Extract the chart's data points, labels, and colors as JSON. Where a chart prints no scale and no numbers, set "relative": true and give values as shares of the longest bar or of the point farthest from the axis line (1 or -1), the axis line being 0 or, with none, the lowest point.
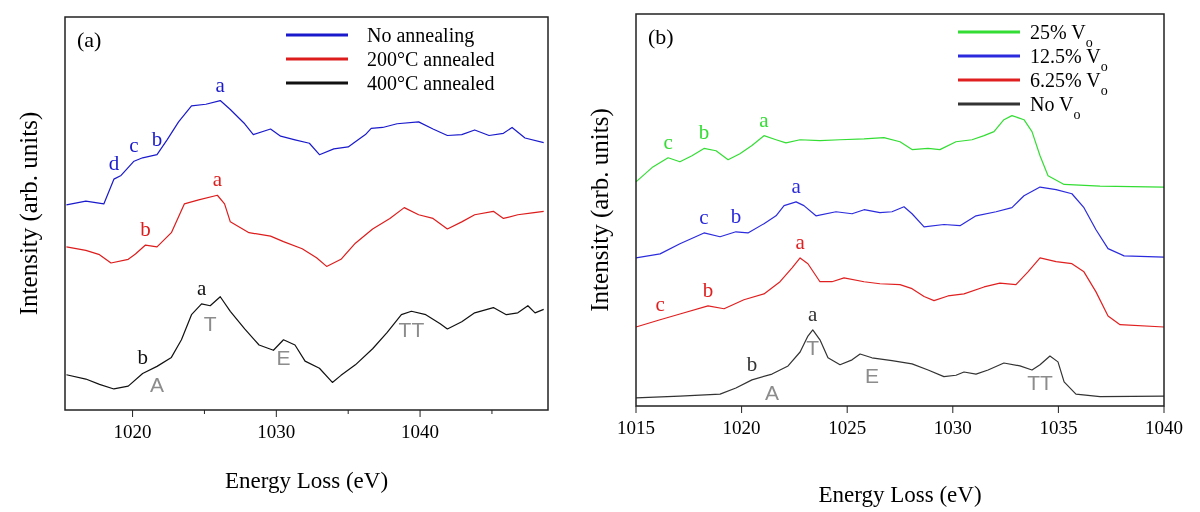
{
  "chart_data": [
    {
      "type": "line",
      "title": "(a)",
      "xlabel": "Energy Loss (eV)",
      "ylabel": "Intensity (arb. units)",
      "relative": true,
      "tick_labels": "x",
      "legend": "top right",
      "grid": false,
      "xlim": [
        1015.3,
        1048.9
      ],
      "xticks": [
        1020,
        {
          "value": 1025,
          "label": null
        },
        1030,
        {
          "value": 1035,
          "label": null
        },
        1040,
        {
          "value": 1045,
          "label": null
        }
      ],
      "series": [
        {
          "name": "No annealing",
          "color": "#1a1acc",
          "x": [
            1015.4,
            1016.75,
            1018.0,
            1018.7,
            1019.2,
            1020.1,
            1020.7,
            1021.7,
            1022.4,
            1023.2,
            1024.1,
            1025.1,
            1026.1,
            1026.8,
            1027.8,
            1028.4,
            1029.6,
            1030.3,
            1031.3,
            1032.3,
            1033.0,
            1034.0,
            1035.0,
            1035.5,
            1036.2,
            1036.6,
            1037.4,
            1038.4,
            1039.9,
            1040.9,
            1041.9,
            1042.9,
            1043.8,
            1044.8,
            1045.8,
            1046.4,
            1047.3,
            1048.6
          ],
          "values": [
            0.663,
            0.675,
            0.666,
            0.746,
            0.758,
            0.804,
            0.815,
            0.825,
            0.873,
            0.931,
            0.983,
            0.988,
            1.0,
            0.971,
            0.925,
            0.89,
            0.908,
            0.885,
            0.873,
            0.862,
            0.825,
            0.844,
            0.85,
            0.867,
            0.89,
            0.91,
            0.913,
            0.925,
            0.931,
            0.908,
            0.887,
            0.89,
            0.905,
            0.887,
            0.894,
            0.913,
            0.879,
            0.864
          ]
        },
        {
          "name": "200°C annealed",
          "color": "#dd1c1c",
          "x": [
            1015.4,
            1016.75,
            1017.7,
            1018.5,
            1019.7,
            1020.2,
            1020.9,
            1021.7,
            1022.7,
            1023.6,
            1024.6,
            1025.9,
            1026.4,
            1026.8,
            1028.1,
            1029.6,
            1030.5,
            1031.8,
            1032.8,
            1033.5,
            1034.5,
            1035.5,
            1036.7,
            1037.9,
            1038.9,
            1039.9,
            1040.9,
            1041.9,
            1042.9,
            1043.8,
            1045.1,
            1045.8,
            1046.8,
            1047.8,
            1048.6
          ],
          "values": [
            0.527,
            0.516,
            0.502,
            0.475,
            0.487,
            0.504,
            0.533,
            0.527,
            0.573,
            0.666,
            0.679,
            0.694,
            0.666,
            0.608,
            0.573,
            0.562,
            0.544,
            0.521,
            0.492,
            0.464,
            0.487,
            0.539,
            0.585,
            0.619,
            0.654,
            0.631,
            0.619,
            0.585,
            0.608,
            0.631,
            0.642,
            0.619,
            0.631,
            0.637,
            0.642
          ]
        },
        {
          "name": "400°C annealed",
          "color": "#111111",
          "x": [
            1015.4,
            1016.75,
            1017.7,
            1018.7,
            1019.7,
            1020.7,
            1021.7,
            1022.7,
            1023.4,
            1024.1,
            1024.8,
            1025.4,
            1026.1,
            1026.8,
            1027.8,
            1028.8,
            1029.8,
            1030.5,
            1031.3,
            1032.0,
            1033.0,
            1033.9,
            1034.5,
            1035.5,
            1036.7,
            1037.7,
            1038.7,
            1039.4,
            1040.4,
            1041.4,
            1041.9,
            1042.9,
            1043.8,
            1045.1,
            1046.0,
            1046.8,
            1047.5,
            1048.0,
            1048.6
          ],
          "values": [
            0.114,
            0.1,
            0.083,
            0.068,
            0.077,
            0.118,
            0.141,
            0.17,
            0.227,
            0.308,
            0.343,
            0.337,
            0.366,
            0.319,
            0.262,
            0.21,
            0.193,
            0.227,
            0.21,
            0.158,
            0.135,
            0.089,
            0.112,
            0.146,
            0.198,
            0.25,
            0.308,
            0.319,
            0.308,
            0.279,
            0.262,
            0.285,
            0.314,
            0.331,
            0.308,
            0.314,
            0.337,
            0.314,
            0.325
          ]
        }
      ],
      "annotations": [
        {
          "text": "d",
          "x": 1018.7,
          "y": 0.746
        },
        {
          "text": "c",
          "x": 1020.1,
          "y": 0.804
        },
        {
          "text": "b",
          "x": 1021.7,
          "y": 0.825
        },
        {
          "text": "a",
          "x": 1026.1,
          "y": 1.0
        },
        {
          "text": "b",
          "x": 1020.9,
          "y": 0.533
        },
        {
          "text": "a",
          "x": 1025.9,
          "y": 0.694
        },
        {
          "text": "a",
          "x": 1024.8,
          "y": 0.343
        },
        {
          "text": "b",
          "x": 1020.7,
          "y": 0.118
        },
        {
          "text": "T",
          "x": 1025.4,
          "y": 0.337
        },
        {
          "text": "A",
          "x": 1021.7,
          "y": 0.141
        },
        {
          "text": "E",
          "x": 1030.5,
          "y": 0.227
        },
        {
          "text": "TT",
          "x": 1039.4,
          "y": 0.319
        }
      ]
    },
    {
      "type": "line",
      "title": "(b)",
      "xlabel": "Energy Loss (eV)",
      "ylabel": "Intensity (arb. units)",
      "relative": true,
      "tick_labels": "x",
      "legend": "top right",
      "grid": false,
      "xlim": [
        1015,
        1040
      ],
      "xticks": [
        1015,
        1020,
        1025,
        1030,
        1035,
        1040
      ],
      "series": [
        {
          "name": "25% V$_{o}$",
          "color": "#33dd33",
          "x": [
            1015.0,
            1015.76,
            1016.52,
            1017.08,
            1017.65,
            1018.22,
            1018.79,
            1019.36,
            1019.92,
            1020.49,
            1021.06,
            1021.63,
            1022.1,
            1022.77,
            1023.71,
            1024.66,
            1025.8,
            1026.74,
            1027.5,
            1028.07,
            1028.83,
            1029.39,
            1030.15,
            1030.91,
            1031.48,
            1031.95,
            1032.42,
            1032.8,
            1033.37,
            1033.75,
            1034.13,
            1034.51,
            1035.27,
            1036.97,
            1040
          ],
          "values": [
            0.772,
            0.821,
            0.855,
            0.841,
            0.862,
            0.887,
            0.879,
            0.848,
            0.869,
            0.897,
            0.931,
            0.917,
            0.906,
            0.917,
            0.914,
            0.917,
            0.92,
            0.924,
            0.91,
            0.883,
            0.887,
            0.883,
            0.91,
            0.917,
            0.931,
            0.945,
            0.986,
            1.0,
            0.986,
            0.945,
            0.862,
            0.793,
            0.763,
            0.757,
            0.754
          ]
        },
        {
          "name": "12.5% V$_{o}$",
          "color": "#2b2bdd",
          "x": [
            1015.0,
            1016.14,
            1017.08,
            1018.22,
            1018.98,
            1019.73,
            1020.3,
            1021.06,
            1021.63,
            1022.01,
            1022.58,
            1022.95,
            1023.52,
            1024.47,
            1025.23,
            1025.8,
            1026.55,
            1027.12,
            1027.69,
            1028.07,
            1028.64,
            1029.58,
            1030.34,
            1031.1,
            1032.05,
            1032.8,
            1033.37,
            1034.13,
            1034.89,
            1035.64,
            1036.21,
            1036.78,
            1037.35,
            1038.11,
            1040
          ],
          "values": [
            0.51,
            0.524,
            0.559,
            0.596,
            0.583,
            0.6,
            0.596,
            0.628,
            0.655,
            0.69,
            0.703,
            0.69,
            0.655,
            0.669,
            0.662,
            0.676,
            0.666,
            0.669,
            0.686,
            0.662,
            0.617,
            0.625,
            0.621,
            0.655,
            0.669,
            0.683,
            0.724,
            0.754,
            0.745,
            0.731,
            0.683,
            0.607,
            0.542,
            0.517,
            0.513
          ]
        },
        {
          "name": "6.25% V$_{o}$",
          "color": "#e02020",
          "x": [
            1015.0,
            1016.14,
            1017.08,
            1018.41,
            1019.17,
            1020.11,
            1021.06,
            1021.82,
            1022.39,
            1022.77,
            1023.14,
            1023.71,
            1024.28,
            1024.85,
            1025.8,
            1026.55,
            1027.5,
            1028.07,
            1028.64,
            1029.11,
            1029.77,
            1030.53,
            1031.48,
            1032.23,
            1032.99,
            1033.56,
            1034.13,
            1034.89,
            1035.64,
            1036.21,
            1036.78,
            1037.35,
            1037.92,
            1040
          ],
          "values": [
            0.272,
            0.297,
            0.317,
            0.345,
            0.335,
            0.366,
            0.386,
            0.428,
            0.476,
            0.51,
            0.49,
            0.428,
            0.428,
            0.441,
            0.428,
            0.421,
            0.418,
            0.404,
            0.377,
            0.363,
            0.379,
            0.386,
            0.41,
            0.423,
            0.418,
            0.462,
            0.51,
            0.497,
            0.49,
            0.462,
            0.393,
            0.31,
            0.28,
            0.272
          ]
        },
        {
          "name": "No V$_{o}$",
          "color": "#333333",
          "x": [
            1015.0,
            1017.08,
            1018.98,
            1019.73,
            1020.49,
            1021.44,
            1022.2,
            1022.77,
            1023.14,
            1023.37,
            1023.71,
            1024.09,
            1024.66,
            1025.23,
            1025.61,
            1026.17,
            1027.12,
            1028.07,
            1028.83,
            1029.58,
            1030.15,
            1030.53,
            1031.1,
            1031.67,
            1032.42,
            1033.18,
            1033.75,
            1034.13,
            1034.6,
            1034.98,
            1035.27,
            1035.83,
            1036.97,
            1040
          ],
          "values": [
            0.028,
            0.034,
            0.041,
            0.062,
            0.09,
            0.11,
            0.138,
            0.186,
            0.241,
            0.262,
            0.228,
            0.166,
            0.142,
            0.159,
            0.179,
            0.166,
            0.156,
            0.145,
            0.124,
            0.101,
            0.106,
            0.117,
            0.11,
            0.124,
            0.148,
            0.138,
            0.124,
            0.142,
            0.172,
            0.152,
            0.083,
            0.041,
            0.032,
            0.034
          ]
        }
      ],
      "annotations": [
        {
          "text": "c",
          "x": 1016.52,
          "y": 0.855
        },
        {
          "text": "b",
          "x": 1018.22,
          "y": 0.887
        },
        {
          "text": "a",
          "x": 1021.06,
          "y": 0.931
        },
        {
          "text": "a",
          "x": 1022.58,
          "y": 0.703
        },
        {
          "text": "c",
          "x": 1018.22,
          "y": 0.596
        },
        {
          "text": "b",
          "x": 1019.73,
          "y": 0.6
        },
        {
          "text": "a",
          "x": 1022.77,
          "y": 0.51
        },
        {
          "text": "b",
          "x": 1018.41,
          "y": 0.345
        },
        {
          "text": "c",
          "x": 1016.14,
          "y": 0.297
        },
        {
          "text": "a",
          "x": 1023.37,
          "y": 0.262
        },
        {
          "text": "b",
          "x": 1020.49,
          "y": 0.09
        },
        {
          "text": "T",
          "x": 1023.37,
          "y": 0.262
        },
        {
          "text": "A",
          "x": 1021.44,
          "y": 0.11
        },
        {
          "text": "E",
          "x": 1026.17,
          "y": 0.166
        },
        {
          "text": "TT",
          "x": 1034.13,
          "y": 0.142
        }
      ]
    }
  ]
}
